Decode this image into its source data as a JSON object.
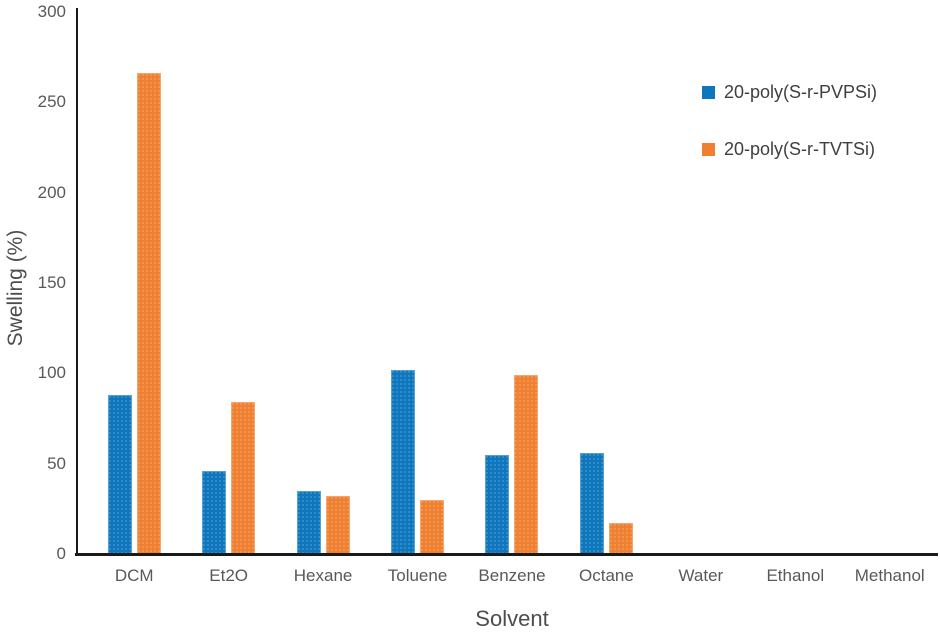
{
  "chart_data": {
    "type": "bar",
    "title": "",
    "xlabel": "Solvent",
    "ylabel": "Swelling (%)",
    "ylim": [
      0,
      300
    ],
    "yticks": [
      0,
      50,
      100,
      150,
      200,
      250,
      300
    ],
    "grid": false,
    "legend_position": "right-top",
    "categories": [
      "DCM",
      "Et2O",
      "Hexane",
      "Toluene",
      "Benzene",
      "Octane",
      "Water",
      "Ethanol",
      "Methanol"
    ],
    "series": [
      {
        "key": "pvpsi",
        "name": "20-poly(S-r-PVPSi)",
        "color": "#0E76BD",
        "values": [
          88,
          46,
          35,
          102,
          55,
          56,
          0,
          0,
          0
        ]
      },
      {
        "key": "tvtsi",
        "name": "20-poly(S-r-TVTSi)",
        "color": "#EF8032",
        "values": [
          266,
          84,
          32,
          30,
          99,
          17,
          0,
          0,
          0
        ]
      }
    ]
  },
  "colors": {
    "axis_line": "#1a1a1a",
    "tick_label": "#595959",
    "axis_title": "#4d4d4d",
    "legend_text": "#3f3f3f",
    "background": "#ffffff"
  }
}
